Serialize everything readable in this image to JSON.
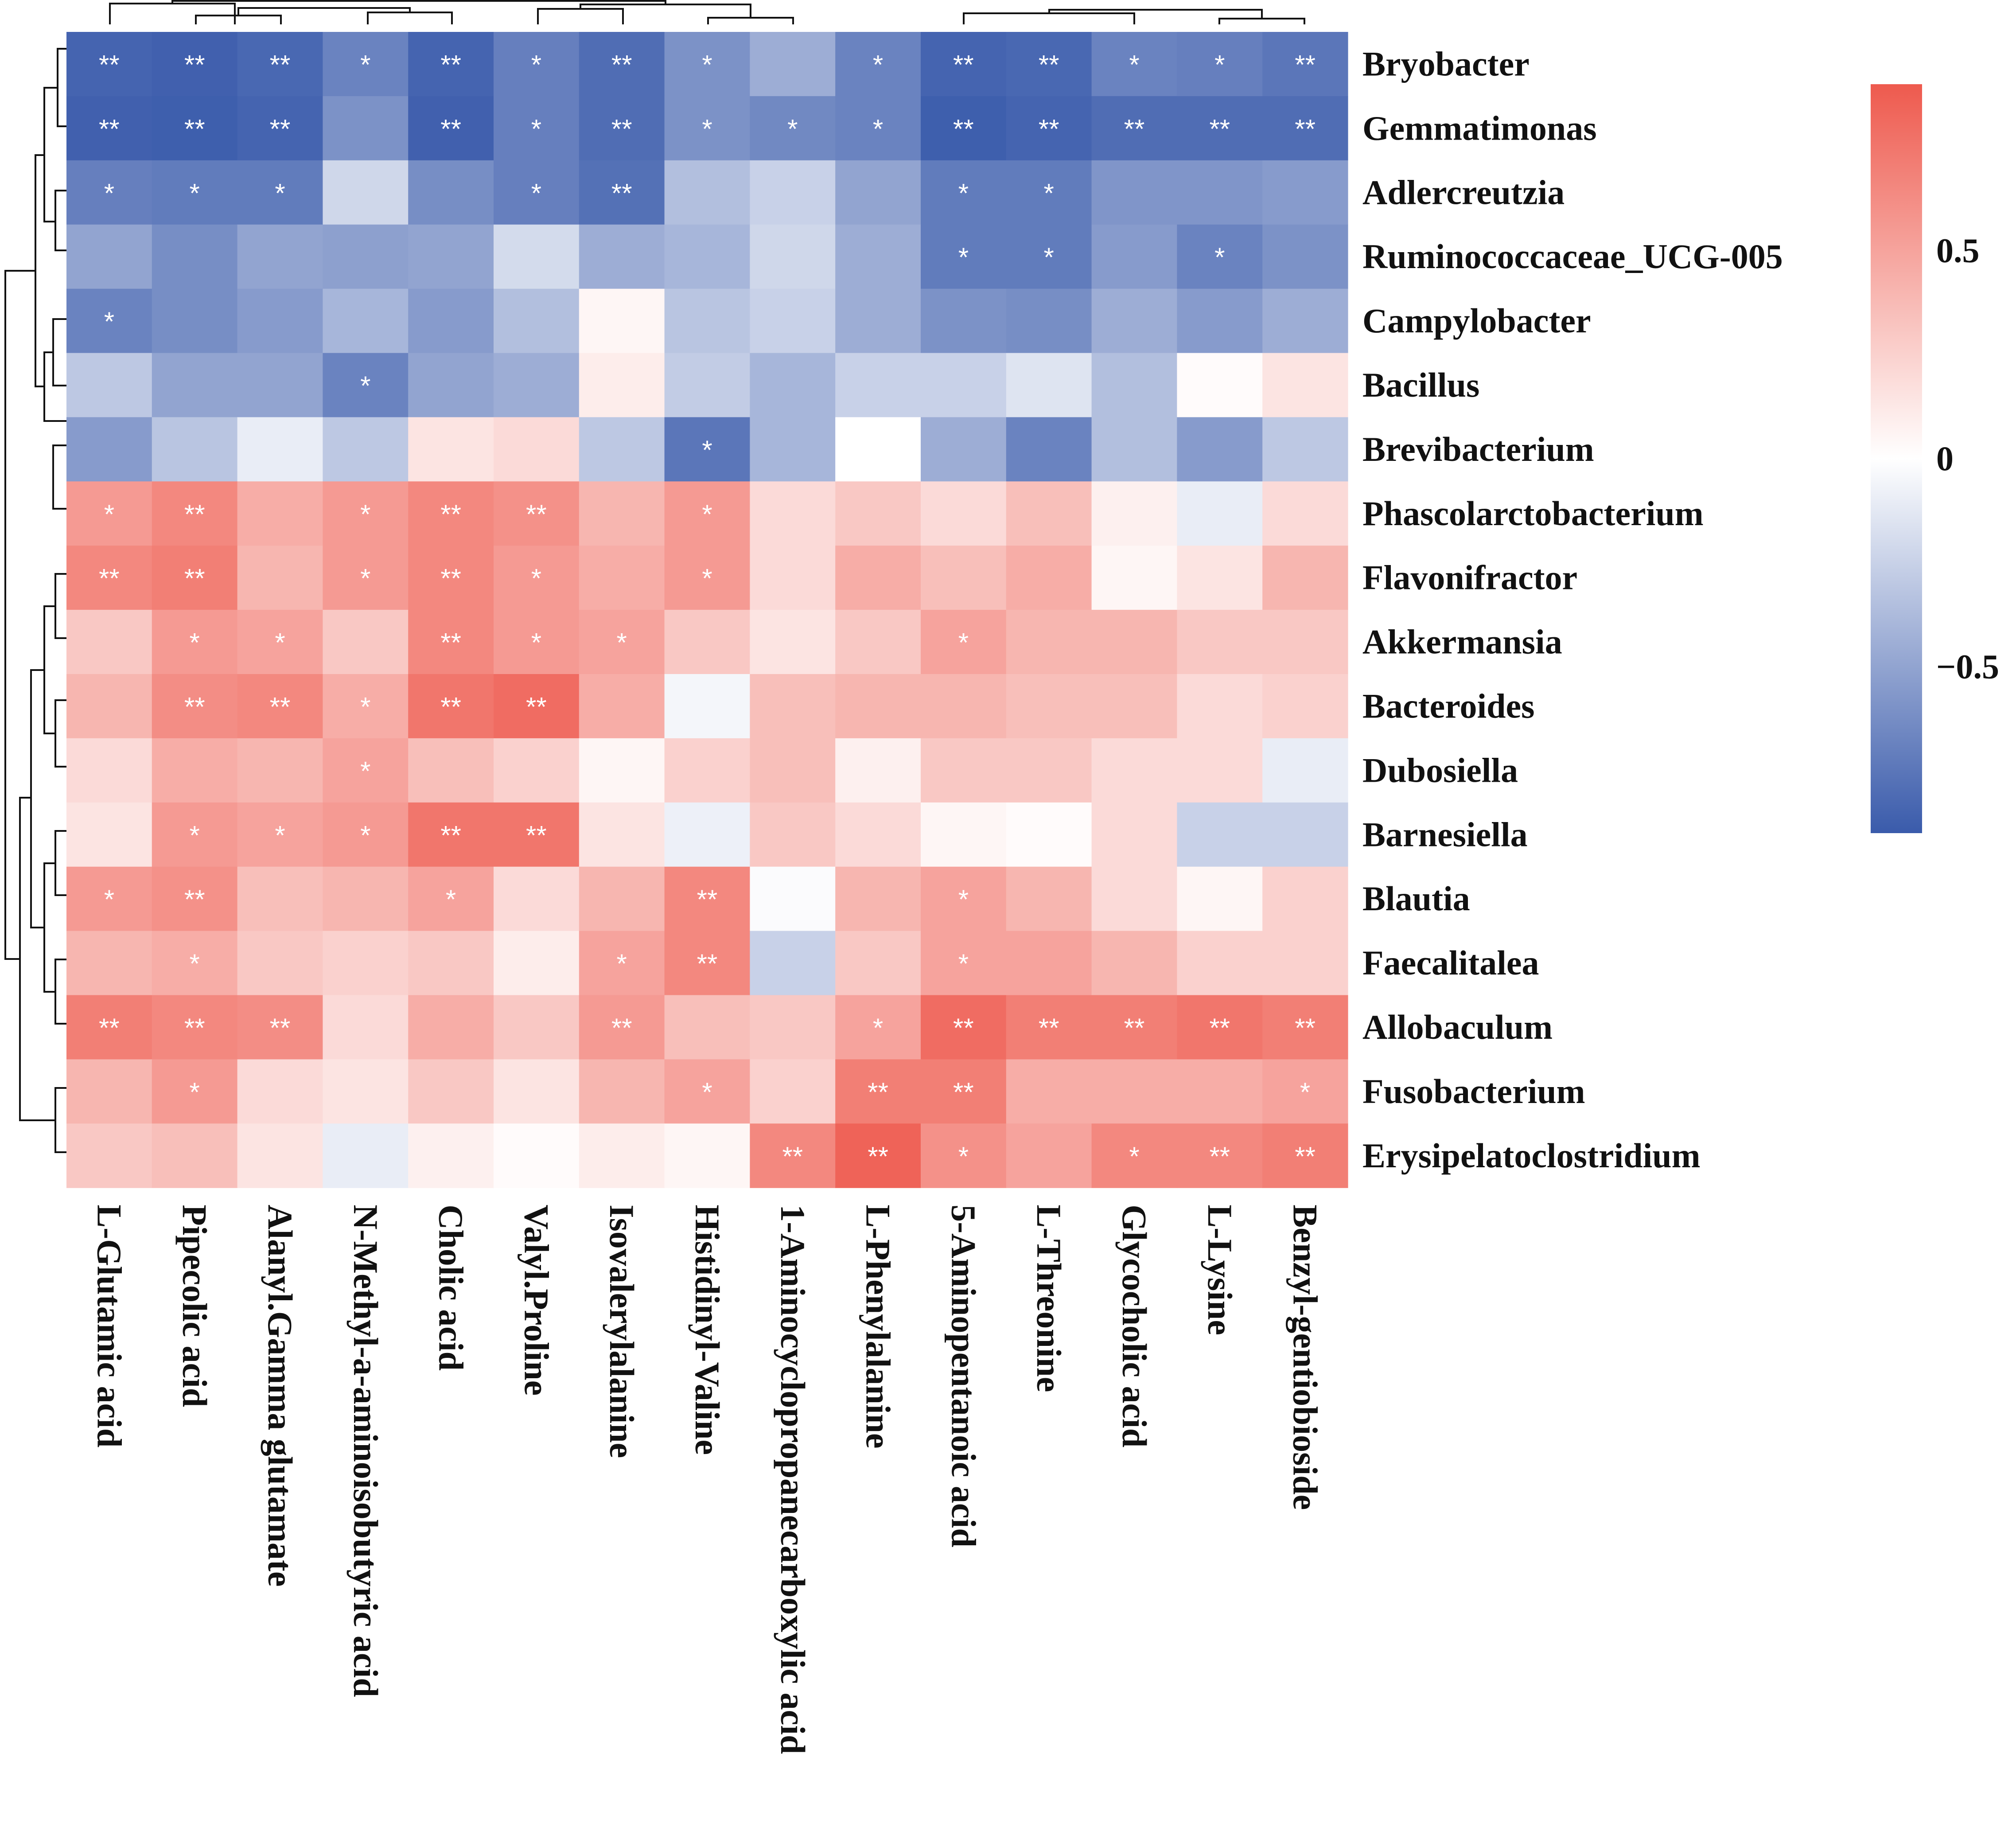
{
  "chart_data": {
    "type": "heatmap",
    "title": "",
    "rows": [
      "Bryobacter",
      "Gemmatimonas",
      "Adlercreutzia",
      "Ruminococcaceae_UCG-005",
      "Campylobacter",
      "Bacillus",
      "Brevibacterium",
      "Phascolarctobacterium",
      "Flavonifractor",
      "Akkermansia",
      "Bacteroides",
      "Dubosiella",
      "Barnesiella",
      "Blautia",
      "Faecalitalea",
      "Allobaculum",
      "Fusobacterium",
      "Erysipelatoclostridium"
    ],
    "columns": [
      "L-Glutamic acid",
      "Pipecolic acid",
      "Alanyl.Gamma glutamate",
      "N-Methyl-a-aminoisobutyric acid",
      "Cholic acid",
      "Valyl.Proline",
      "Isovalerylalanine",
      "Histidinyl-Valine",
      "1-Aminocyclopropanecarboxylic acid",
      "L-Phenylalanine",
      "5-Aminopentanoic acid",
      "L-Threonine",
      "Glycocholic acid",
      "L-Lysine",
      "Benzyl-gentiobioside"
    ],
    "values": [
      [
        -0.85,
        -0.87,
        -0.83,
        -0.68,
        -0.85,
        -0.7,
        -0.8,
        -0.6,
        -0.45,
        -0.68,
        -0.85,
        -0.83,
        -0.68,
        -0.7,
        -0.75
      ],
      [
        -0.87,
        -0.88,
        -0.85,
        -0.6,
        -0.87,
        -0.7,
        -0.8,
        -0.6,
        -0.65,
        -0.68,
        -0.88,
        -0.85,
        -0.8,
        -0.8,
        -0.8
      ],
      [
        -0.7,
        -0.72,
        -0.72,
        -0.22,
        -0.62,
        -0.7,
        -0.78,
        -0.35,
        -0.25,
        -0.5,
        -0.72,
        -0.72,
        -0.58,
        -0.58,
        -0.55
      ],
      [
        -0.5,
        -0.62,
        -0.5,
        -0.52,
        -0.5,
        -0.2,
        -0.45,
        -0.4,
        -0.22,
        -0.45,
        -0.72,
        -0.72,
        -0.55,
        -0.68,
        -0.6
      ],
      [
        -0.68,
        -0.62,
        -0.55,
        -0.4,
        -0.55,
        -0.35,
        0.05,
        -0.32,
        -0.25,
        -0.45,
        -0.6,
        -0.62,
        -0.45,
        -0.55,
        -0.45
      ],
      [
        -0.3,
        -0.5,
        -0.5,
        -0.68,
        -0.5,
        -0.45,
        0.1,
        -0.28,
        -0.4,
        -0.25,
        -0.25,
        -0.15,
        -0.35,
        0.02,
        0.15
      ],
      [
        -0.55,
        -0.32,
        -0.1,
        -0.3,
        0.15,
        0.2,
        -0.3,
        -0.75,
        -0.4,
        0.0,
        -0.45,
        -0.68,
        -0.35,
        -0.55,
        -0.3
      ],
      [
        0.55,
        0.65,
        0.45,
        0.55,
        0.65,
        0.6,
        0.4,
        0.55,
        0.2,
        0.3,
        0.2,
        0.35,
        0.08,
        -0.1,
        0.2
      ],
      [
        0.65,
        0.7,
        0.4,
        0.55,
        0.65,
        0.55,
        0.45,
        0.55,
        0.2,
        0.45,
        0.35,
        0.45,
        0.05,
        0.15,
        0.4
      ],
      [
        0.3,
        0.55,
        0.5,
        0.3,
        0.65,
        0.55,
        0.5,
        0.3,
        0.15,
        0.3,
        0.5,
        0.4,
        0.4,
        0.3,
        0.3
      ],
      [
        0.4,
        0.62,
        0.65,
        0.45,
        0.75,
        0.8,
        0.45,
        -0.05,
        0.35,
        0.4,
        0.4,
        0.35,
        0.35,
        0.2,
        0.25
      ],
      [
        0.2,
        0.45,
        0.4,
        0.5,
        0.35,
        0.25,
        0.05,
        0.25,
        0.35,
        0.08,
        0.3,
        0.3,
        0.2,
        0.2,
        -0.1
      ],
      [
        0.15,
        0.55,
        0.5,
        0.55,
        0.75,
        0.75,
        0.15,
        -0.08,
        0.3,
        0.2,
        0.05,
        0.02,
        0.2,
        -0.25,
        -0.25
      ],
      [
        0.55,
        0.6,
        0.35,
        0.4,
        0.5,
        0.2,
        0.4,
        0.65,
        -0.02,
        0.4,
        0.5,
        0.4,
        0.2,
        0.05,
        0.25
      ],
      [
        0.4,
        0.45,
        0.3,
        0.25,
        0.3,
        0.1,
        0.5,
        0.65,
        -0.25,
        0.3,
        0.5,
        0.5,
        0.4,
        0.25,
        0.25
      ],
      [
        0.7,
        0.65,
        0.62,
        0.2,
        0.45,
        0.3,
        0.55,
        0.35,
        0.3,
        0.5,
        0.8,
        0.7,
        0.7,
        0.75,
        0.7
      ],
      [
        0.4,
        0.55,
        0.2,
        0.15,
        0.3,
        0.15,
        0.4,
        0.5,
        0.25,
        0.7,
        0.7,
        0.45,
        0.45,
        0.45,
        0.5
      ],
      [
        0.3,
        0.35,
        0.15,
        -0.1,
        0.08,
        0.02,
        0.1,
        0.05,
        0.65,
        0.85,
        0.6,
        0.5,
        0.65,
        0.65,
        0.7
      ]
    ],
    "significance": [
      [
        "**",
        "**",
        "**",
        "*",
        "**",
        "*",
        "**",
        "*",
        "",
        "*",
        "**",
        "**",
        "*",
        "*",
        "**"
      ],
      [
        "**",
        "**",
        "**",
        "",
        "**",
        "*",
        "**",
        "*",
        "*",
        "*",
        "**",
        "**",
        "**",
        "**",
        "**"
      ],
      [
        "*",
        "*",
        "*",
        "",
        "",
        "*",
        "**",
        "",
        "",
        "",
        "*",
        "*",
        "",
        "",
        ""
      ],
      [
        "",
        "",
        "",
        "",
        "",
        "",
        "",
        "",
        "",
        "",
        "*",
        "*",
        "",
        "*",
        ""
      ],
      [
        "*",
        "",
        "",
        "",
        "",
        "",
        "",
        "",
        "",
        "",
        "",
        "",
        "",
        "",
        ""
      ],
      [
        "",
        "",
        "",
        "*",
        "",
        "",
        "",
        "",
        "",
        "",
        "",
        "",
        "",
        "",
        ""
      ],
      [
        "",
        "",
        "",
        "",
        "",
        "",
        "",
        "*",
        "",
        "",
        "",
        "",
        "",
        "",
        ""
      ],
      [
        "*",
        "**",
        "",
        "*",
        "**",
        "**",
        "",
        "*",
        "",
        "",
        "",
        "",
        "",
        "",
        ""
      ],
      [
        "**",
        "**",
        "",
        "*",
        "**",
        "*",
        "",
        "*",
        "",
        "",
        "",
        "",
        "",
        "",
        ""
      ],
      [
        "",
        "*",
        "*",
        "",
        "**",
        "*",
        "*",
        "",
        "",
        "",
        "*",
        "",
        "",
        "",
        ""
      ],
      [
        "",
        "**",
        "**",
        "*",
        "**",
        "**",
        "",
        "",
        "",
        "",
        "",
        "",
        "",
        "",
        ""
      ],
      [
        "",
        "",
        "",
        "*",
        "",
        "",
        "",
        "",
        "",
        "",
        "",
        "",
        "",
        "",
        ""
      ],
      [
        "",
        "*",
        "*",
        "*",
        "**",
        "**",
        "",
        "",
        "",
        "",
        "",
        "",
        "",
        "",
        ""
      ],
      [
        "*",
        "**",
        "",
        "",
        "*",
        "",
        "",
        "**",
        "",
        "",
        "*",
        "",
        "",
        "",
        ""
      ],
      [
        "",
        "*",
        "",
        "",
        "",
        "",
        "*",
        "**",
        "",
        "",
        "*",
        "",
        "",
        "",
        ""
      ],
      [
        "**",
        "**",
        "**",
        "",
        "",
        "",
        "**",
        "",
        "",
        "*",
        "**",
        "**",
        "**",
        "**",
        "**"
      ],
      [
        "",
        "*",
        "",
        "",
        "",
        "",
        "",
        "*",
        "",
        "**",
        "**",
        "",
        "",
        "",
        "*"
      ],
      [
        "",
        "",
        "",
        "",
        "",
        "",
        "",
        "",
        "**",
        "**",
        "*",
        "",
        "*",
        "**",
        "**"
      ]
    ],
    "color_scale": {
      "min": -0.9,
      "max": 0.9,
      "low_color": "#3a5bab",
      "mid_color": "#ffffff",
      "high_color": "#ee5a4e",
      "ticks": [
        0.5,
        0,
        -0.5
      ],
      "tick_labels": [
        "0.5",
        "0",
        "−0.5"
      ]
    },
    "row_dendrogram": true,
    "column_dendrogram": true,
    "legend_position": "right"
  }
}
